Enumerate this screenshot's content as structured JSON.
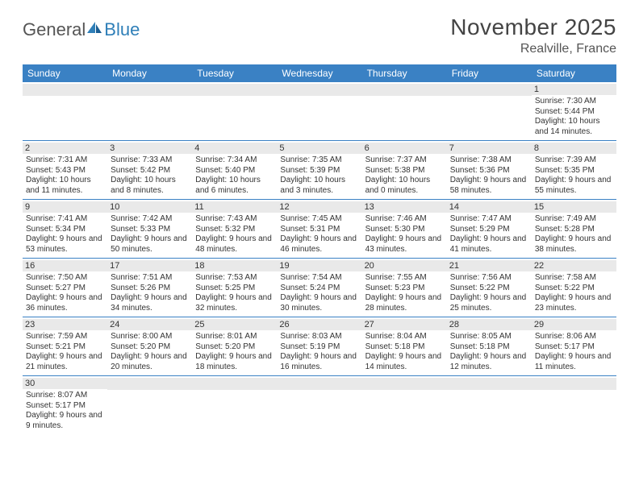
{
  "logo": {
    "part1": "General",
    "part2": "Blue"
  },
  "title": "November 2025",
  "location": "Realville, France",
  "colors": {
    "header_bg": "#3a81c4",
    "header_fg": "#ffffff",
    "daynum_bg": "#e9e9e9",
    "row_border": "#3a81c4",
    "logo_gray": "#555555",
    "logo_blue": "#2f7fb8"
  },
  "day_names": [
    "Sunday",
    "Monday",
    "Tuesday",
    "Wednesday",
    "Thursday",
    "Friday",
    "Saturday"
  ],
  "weeks": [
    [
      {
        "n": "",
        "sr": "",
        "ss": "",
        "dl": ""
      },
      {
        "n": "",
        "sr": "",
        "ss": "",
        "dl": ""
      },
      {
        "n": "",
        "sr": "",
        "ss": "",
        "dl": ""
      },
      {
        "n": "",
        "sr": "",
        "ss": "",
        "dl": ""
      },
      {
        "n": "",
        "sr": "",
        "ss": "",
        "dl": ""
      },
      {
        "n": "",
        "sr": "",
        "ss": "",
        "dl": ""
      },
      {
        "n": "1",
        "sr": "Sunrise: 7:30 AM",
        "ss": "Sunset: 5:44 PM",
        "dl": "Daylight: 10 hours and 14 minutes."
      }
    ],
    [
      {
        "n": "2",
        "sr": "Sunrise: 7:31 AM",
        "ss": "Sunset: 5:43 PM",
        "dl": "Daylight: 10 hours and 11 minutes."
      },
      {
        "n": "3",
        "sr": "Sunrise: 7:33 AM",
        "ss": "Sunset: 5:42 PM",
        "dl": "Daylight: 10 hours and 8 minutes."
      },
      {
        "n": "4",
        "sr": "Sunrise: 7:34 AM",
        "ss": "Sunset: 5:40 PM",
        "dl": "Daylight: 10 hours and 6 minutes."
      },
      {
        "n": "5",
        "sr": "Sunrise: 7:35 AM",
        "ss": "Sunset: 5:39 PM",
        "dl": "Daylight: 10 hours and 3 minutes."
      },
      {
        "n": "6",
        "sr": "Sunrise: 7:37 AM",
        "ss": "Sunset: 5:38 PM",
        "dl": "Daylight: 10 hours and 0 minutes."
      },
      {
        "n": "7",
        "sr": "Sunrise: 7:38 AM",
        "ss": "Sunset: 5:36 PM",
        "dl": "Daylight: 9 hours and 58 minutes."
      },
      {
        "n": "8",
        "sr": "Sunrise: 7:39 AM",
        "ss": "Sunset: 5:35 PM",
        "dl": "Daylight: 9 hours and 55 minutes."
      }
    ],
    [
      {
        "n": "9",
        "sr": "Sunrise: 7:41 AM",
        "ss": "Sunset: 5:34 PM",
        "dl": "Daylight: 9 hours and 53 minutes."
      },
      {
        "n": "10",
        "sr": "Sunrise: 7:42 AM",
        "ss": "Sunset: 5:33 PM",
        "dl": "Daylight: 9 hours and 50 minutes."
      },
      {
        "n": "11",
        "sr": "Sunrise: 7:43 AM",
        "ss": "Sunset: 5:32 PM",
        "dl": "Daylight: 9 hours and 48 minutes."
      },
      {
        "n": "12",
        "sr": "Sunrise: 7:45 AM",
        "ss": "Sunset: 5:31 PM",
        "dl": "Daylight: 9 hours and 46 minutes."
      },
      {
        "n": "13",
        "sr": "Sunrise: 7:46 AM",
        "ss": "Sunset: 5:30 PM",
        "dl": "Daylight: 9 hours and 43 minutes."
      },
      {
        "n": "14",
        "sr": "Sunrise: 7:47 AM",
        "ss": "Sunset: 5:29 PM",
        "dl": "Daylight: 9 hours and 41 minutes."
      },
      {
        "n": "15",
        "sr": "Sunrise: 7:49 AM",
        "ss": "Sunset: 5:28 PM",
        "dl": "Daylight: 9 hours and 38 minutes."
      }
    ],
    [
      {
        "n": "16",
        "sr": "Sunrise: 7:50 AM",
        "ss": "Sunset: 5:27 PM",
        "dl": "Daylight: 9 hours and 36 minutes."
      },
      {
        "n": "17",
        "sr": "Sunrise: 7:51 AM",
        "ss": "Sunset: 5:26 PM",
        "dl": "Daylight: 9 hours and 34 minutes."
      },
      {
        "n": "18",
        "sr": "Sunrise: 7:53 AM",
        "ss": "Sunset: 5:25 PM",
        "dl": "Daylight: 9 hours and 32 minutes."
      },
      {
        "n": "19",
        "sr": "Sunrise: 7:54 AM",
        "ss": "Sunset: 5:24 PM",
        "dl": "Daylight: 9 hours and 30 minutes."
      },
      {
        "n": "20",
        "sr": "Sunrise: 7:55 AM",
        "ss": "Sunset: 5:23 PM",
        "dl": "Daylight: 9 hours and 28 minutes."
      },
      {
        "n": "21",
        "sr": "Sunrise: 7:56 AM",
        "ss": "Sunset: 5:22 PM",
        "dl": "Daylight: 9 hours and 25 minutes."
      },
      {
        "n": "22",
        "sr": "Sunrise: 7:58 AM",
        "ss": "Sunset: 5:22 PM",
        "dl": "Daylight: 9 hours and 23 minutes."
      }
    ],
    [
      {
        "n": "23",
        "sr": "Sunrise: 7:59 AM",
        "ss": "Sunset: 5:21 PM",
        "dl": "Daylight: 9 hours and 21 minutes."
      },
      {
        "n": "24",
        "sr": "Sunrise: 8:00 AM",
        "ss": "Sunset: 5:20 PM",
        "dl": "Daylight: 9 hours and 20 minutes."
      },
      {
        "n": "25",
        "sr": "Sunrise: 8:01 AM",
        "ss": "Sunset: 5:20 PM",
        "dl": "Daylight: 9 hours and 18 minutes."
      },
      {
        "n": "26",
        "sr": "Sunrise: 8:03 AM",
        "ss": "Sunset: 5:19 PM",
        "dl": "Daylight: 9 hours and 16 minutes."
      },
      {
        "n": "27",
        "sr": "Sunrise: 8:04 AM",
        "ss": "Sunset: 5:18 PM",
        "dl": "Daylight: 9 hours and 14 minutes."
      },
      {
        "n": "28",
        "sr": "Sunrise: 8:05 AM",
        "ss": "Sunset: 5:18 PM",
        "dl": "Daylight: 9 hours and 12 minutes."
      },
      {
        "n": "29",
        "sr": "Sunrise: 8:06 AM",
        "ss": "Sunset: 5:17 PM",
        "dl": "Daylight: 9 hours and 11 minutes."
      }
    ],
    [
      {
        "n": "30",
        "sr": "Sunrise: 8:07 AM",
        "ss": "Sunset: 5:17 PM",
        "dl": "Daylight: 9 hours and 9 minutes."
      },
      {
        "n": "",
        "sr": "",
        "ss": "",
        "dl": ""
      },
      {
        "n": "",
        "sr": "",
        "ss": "",
        "dl": ""
      },
      {
        "n": "",
        "sr": "",
        "ss": "",
        "dl": ""
      },
      {
        "n": "",
        "sr": "",
        "ss": "",
        "dl": ""
      },
      {
        "n": "",
        "sr": "",
        "ss": "",
        "dl": ""
      },
      {
        "n": "",
        "sr": "",
        "ss": "",
        "dl": ""
      }
    ]
  ]
}
